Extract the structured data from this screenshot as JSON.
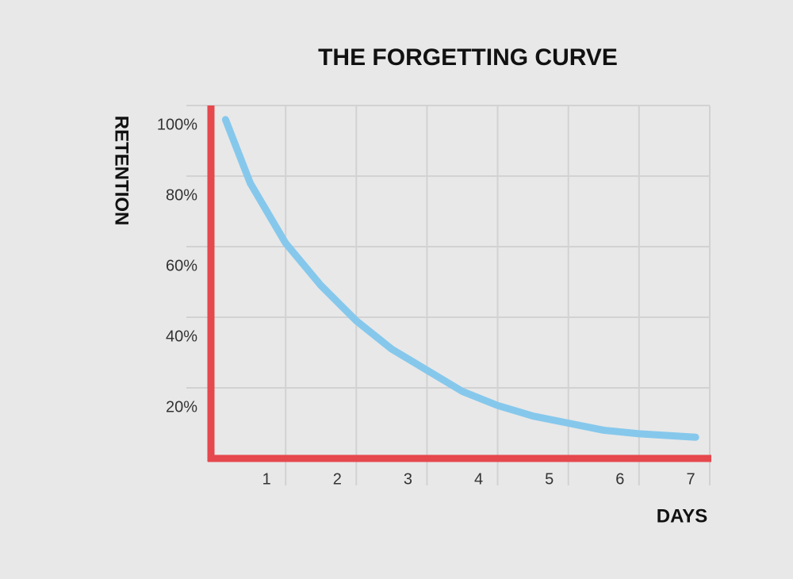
{
  "chart_data": {
    "type": "line",
    "title": "THE FORGETTING CURVE",
    "x_label": "DAYS",
    "y_label": "RETENTION",
    "x": [
      0.15,
      0.5,
      1,
      1.5,
      2,
      2.5,
      3,
      3.5,
      4,
      4.5,
      5,
      5.5,
      6,
      6.8
    ],
    "series": [
      {
        "color": "#86c8ec",
        "values": [
          96,
          78,
          61,
          49,
          39,
          31,
          25,
          19,
          15,
          12,
          10,
          8,
          7,
          6
        ]
      }
    ],
    "xlim": [
      0,
      7
    ],
    "xticks": [
      1,
      2,
      3,
      4,
      5,
      6,
      7
    ],
    "ylim": [
      0,
      100
    ],
    "yticks": [
      {
        "value": 20,
        "label": "20%"
      },
      {
        "value": 40,
        "label": "40%"
      },
      {
        "value": 60,
        "label": "60%"
      },
      {
        "value": 80,
        "label": "80%"
      },
      {
        "value": 100,
        "label": "100%"
      }
    ],
    "grid": true,
    "axis_color": "#e5484d"
  }
}
